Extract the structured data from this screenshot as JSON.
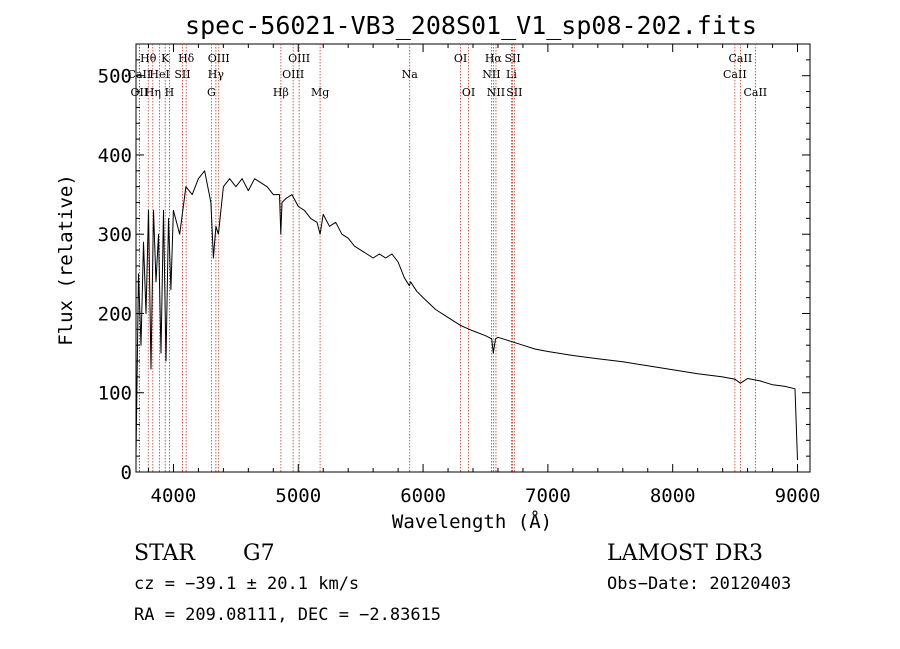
{
  "chart_data": {
    "type": "line",
    "title": "spec-56021-VB3_208S01_V1_sp08-202.fits",
    "xlabel": "Wavelength (Å)",
    "ylabel": "Flux (relative)",
    "xlim": [
      3700,
      9100
    ],
    "ylim": [
      0,
      540
    ],
    "xticks": [
      4000,
      5000,
      6000,
      7000,
      8000,
      9000
    ],
    "yticks": [
      0,
      100,
      200,
      300,
      400,
      500
    ],
    "grid": false,
    "series": [
      {
        "name": "spectrum",
        "x": [
          3700,
          3720,
          3740,
          3760,
          3780,
          3800,
          3820,
          3840,
          3860,
          3880,
          3900,
          3920,
          3940,
          3960,
          3980,
          4000,
          4050,
          4100,
          4150,
          4200,
          4250,
          4300,
          4320,
          4340,
          4360,
          4400,
          4450,
          4500,
          4550,
          4600,
          4650,
          4700,
          4750,
          4800,
          4850,
          4860,
          4870,
          4900,
          4950,
          5000,
          5050,
          5100,
          5150,
          5175,
          5200,
          5250,
          5300,
          5350,
          5400,
          5450,
          5500,
          5550,
          5600,
          5650,
          5700,
          5750,
          5800,
          5850,
          5890,
          5900,
          5950,
          6000,
          6100,
          6200,
          6300,
          6400,
          6500,
          6550,
          6563,
          6580,
          6600,
          6700,
          6800,
          6900,
          7000,
          7200,
          7400,
          7600,
          7800,
          8000,
          8200,
          8400,
          8500,
          8542,
          8600,
          8700,
          8800,
          8900,
          8980,
          9000
        ],
        "y": [
          20,
          250,
          160,
          290,
          200,
          330,
          130,
          330,
          240,
          300,
          150,
          330,
          140,
          320,
          230,
          330,
          300,
          360,
          350,
          370,
          380,
          340,
          270,
          310,
          300,
          360,
          370,
          360,
          370,
          355,
          370,
          365,
          360,
          350,
          350,
          300,
          340,
          345,
          350,
          335,
          330,
          320,
          315,
          300,
          325,
          310,
          315,
          300,
          295,
          285,
          280,
          275,
          270,
          275,
          270,
          275,
          265,
          245,
          235,
          240,
          228,
          220,
          205,
          195,
          185,
          178,
          172,
          168,
          150,
          168,
          170,
          165,
          160,
          155,
          152,
          147,
          143,
          139,
          134,
          129,
          124,
          120,
          117,
          112,
          118,
          115,
          110,
          108,
          105,
          15
        ]
      }
    ],
    "lines": [
      {
        "name": "Hθ",
        "x": 3798,
        "row": 1
      },
      {
        "name": "OII",
        "x": 3727,
        "row": 3
      },
      {
        "name": "CaII",
        "x": 3727,
        "row": 2
      },
      {
        "name": "Hη",
        "x": 3835,
        "row": 3
      },
      {
        "name": "HeI",
        "x": 3889,
        "row": 2
      },
      {
        "name": "K",
        "x": 3934,
        "row": 1
      },
      {
        "name": "H",
        "x": 3968,
        "row": 3
      },
      {
        "name": "Hδ",
        "x": 4102,
        "row": 1
      },
      {
        "name": "SII",
        "x": 4072,
        "row": 2
      },
      {
        "name": "OIII",
        "x": 4363,
        "row": 1
      },
      {
        "name": "Hγ",
        "x": 4340,
        "row": 2
      },
      {
        "name": "G",
        "x": 4304,
        "row": 3
      },
      {
        "name": "Hβ",
        "x": 4861,
        "row": 3
      },
      {
        "name": "OIII",
        "x": 5007,
        "row": 1
      },
      {
        "name": "OIII",
        "x": 4959,
        "row": 2
      },
      {
        "name": "Mg",
        "x": 5175,
        "row": 3
      },
      {
        "name": "Na",
        "x": 5893,
        "row": 2
      },
      {
        "name": "OI",
        "x": 6300,
        "row": 1
      },
      {
        "name": "OI",
        "x": 6364,
        "row": 3
      },
      {
        "name": "Hα",
        "x": 6563,
        "row": 1
      },
      {
        "name": "NII",
        "x": 6548,
        "row": 2
      },
      {
        "name": "NII",
        "x": 6584,
        "row": 3
      },
      {
        "name": "SII",
        "x": 6717,
        "row": 1
      },
      {
        "name": "Li",
        "x": 6708,
        "row": 2
      },
      {
        "name": "SII",
        "x": 6731,
        "row": 3
      },
      {
        "name": "CaII",
        "x": 8542,
        "row": 1
      },
      {
        "name": "CaII",
        "x": 8498,
        "row": 2
      },
      {
        "name": "CaII",
        "x": 8662,
        "row": 3
      }
    ]
  },
  "info": {
    "object_class": "STAR",
    "subclass": "G7",
    "survey": "LAMOST DR3",
    "cz": "cz = −39.1 ± 20.1 km/s",
    "obs_date": "Obs−Date: 20120403",
    "coords": "RA = 209.08111, DEC =  −2.83615"
  }
}
